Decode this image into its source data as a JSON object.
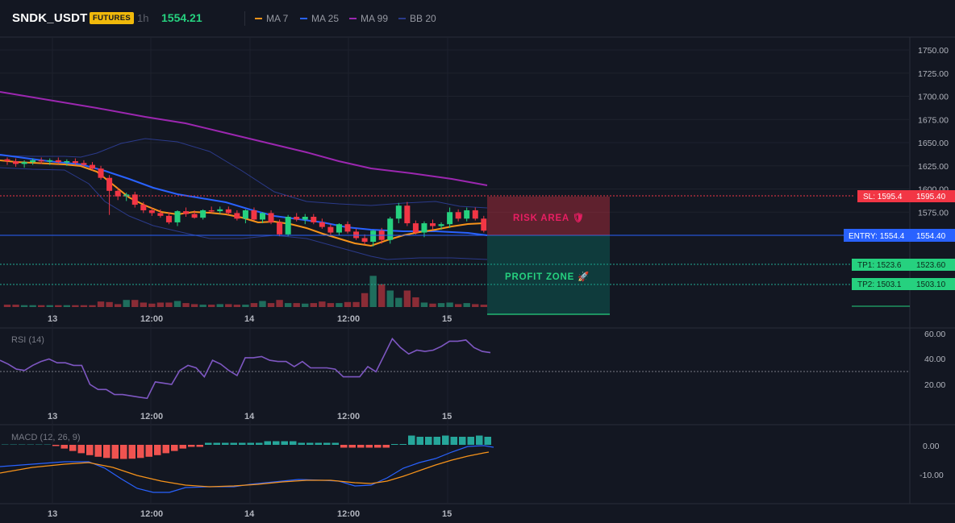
{
  "header": {
    "symbol": "SNDK_USDT",
    "badge": "FUTURES",
    "timeframe": "1h",
    "price": "1554.21"
  },
  "legend": [
    {
      "label": "MA 7",
      "color": "#f7931a"
    },
    {
      "label": "MA 25",
      "color": "#2962ff"
    },
    {
      "label": "MA 99",
      "color": "#9c27b0"
    },
    {
      "label": "BB 20",
      "color": "#2b3a8a"
    }
  ],
  "price_axis": [
    "1750.00",
    "1725.00",
    "1700.00",
    "1675.00",
    "1650.00",
    "1625.00",
    "1600.00",
    "1575.00",
    "1550.00"
  ],
  "time_axis": [
    "13",
    "12:00",
    "14",
    "12:00",
    "15"
  ],
  "levels": {
    "sl": {
      "tag": "SL: 1595.4",
      "value": "1595.40",
      "price": 1595.4
    },
    "entry": {
      "tag": "ENTRY: 1554.4",
      "value": "1554.40",
      "price": 1554.4
    },
    "tp1": {
      "tag": "TP1: 1523.6",
      "value": "1523.60",
      "price": 1523.6
    },
    "tp2": {
      "tag": "TP2: 1503.1",
      "value": "1503.10",
      "price": 1503.1
    }
  },
  "zones": {
    "risk_label": "RISK AREA 🛡",
    "profit_label": "PROFIT ZONE 🚀"
  },
  "rsi": {
    "title": "RSI (14)",
    "axis": [
      "60.00",
      "40.00",
      "20.00"
    ],
    "values": [
      39,
      36,
      32,
      31,
      35,
      38,
      40,
      37,
      37,
      35,
      35,
      20,
      16,
      16,
      12,
      12,
      11,
      10,
      9,
      22,
      21,
      20,
      31,
      35,
      33,
      26,
      39,
      36,
      31,
      27,
      41,
      41,
      42,
      39,
      38,
      38,
      34,
      38,
      33,
      33,
      33,
      32,
      26,
      26,
      26,
      34,
      30,
      43,
      56,
      49,
      44,
      47,
      46,
      47,
      50,
      54,
      54,
      55,
      49,
      46,
      45
    ]
  },
  "macd": {
    "title": "MACD (12, 26, 9)",
    "axis": [
      "0.00",
      "-10.00"
    ]
  },
  "chart_data": {
    "type": "candlestick",
    "y_range": [
      1540,
      1755
    ],
    "candles": [
      [
        1632,
        1634,
        1626,
        1630
      ],
      [
        1630,
        1633,
        1624,
        1627
      ],
      [
        1627,
        1631,
        1623,
        1629
      ],
      [
        1629,
        1633,
        1626,
        1631
      ],
      [
        1631,
        1634,
        1627,
        1630
      ],
      [
        1630,
        1633,
        1626,
        1631
      ],
      [
        1631,
        1634,
        1627,
        1629
      ],
      [
        1629,
        1632,
        1625,
        1630
      ],
      [
        1630,
        1633,
        1626,
        1628
      ],
      [
        1628,
        1631,
        1624,
        1626
      ],
      [
        1626,
        1629,
        1620,
        1622
      ],
      [
        1622,
        1625,
        1610,
        1612
      ],
      [
        1612,
        1615,
        1572,
        1598
      ],
      [
        1598,
        1601,
        1588,
        1592
      ],
      [
        1592,
        1596,
        1587,
        1594
      ],
      [
        1594,
        1597,
        1580,
        1583
      ],
      [
        1583,
        1586,
        1574,
        1577
      ],
      [
        1577,
        1580,
        1571,
        1574
      ],
      [
        1574,
        1578,
        1569,
        1571
      ],
      [
        1571,
        1575,
        1562,
        1564
      ],
      [
        1564,
        1577,
        1560,
        1576
      ],
      [
        1576,
        1580,
        1570,
        1573
      ],
      [
        1573,
        1577,
        1568,
        1569
      ],
      [
        1569,
        1578,
        1567,
        1577
      ],
      [
        1577,
        1581,
        1574,
        1576
      ],
      [
        1576,
        1581,
        1573,
        1578
      ],
      [
        1578,
        1581,
        1572,
        1574
      ],
      [
        1574,
        1577,
        1566,
        1568
      ],
      [
        1568,
        1578,
        1563,
        1577
      ],
      [
        1577,
        1580,
        1566,
        1567
      ],
      [
        1567,
        1575,
        1563,
        1574
      ],
      [
        1574,
        1577,
        1562,
        1564
      ],
      [
        1564,
        1567,
        1549,
        1551
      ],
      [
        1551,
        1572,
        1549,
        1570
      ],
      [
        1570,
        1574,
        1565,
        1567
      ],
      [
        1567,
        1573,
        1562,
        1570
      ],
      [
        1570,
        1573,
        1562,
        1564
      ],
      [
        1564,
        1568,
        1557,
        1559
      ],
      [
        1559,
        1562,
        1550,
        1553
      ],
      [
        1553,
        1563,
        1550,
        1562
      ],
      [
        1562,
        1565,
        1552,
        1554
      ],
      [
        1554,
        1557,
        1545,
        1547
      ],
      [
        1547,
        1551,
        1540,
        1543
      ],
      [
        1543,
        1556,
        1538,
        1555
      ],
      [
        1555,
        1558,
        1541,
        1545
      ],
      [
        1545,
        1570,
        1541,
        1568
      ],
      [
        1568,
        1585,
        1563,
        1582
      ],
      [
        1582,
        1586,
        1560,
        1563
      ],
      [
        1563,
        1566,
        1551,
        1553
      ],
      [
        1553,
        1565,
        1548,
        1563
      ],
      [
        1563,
        1567,
        1556,
        1560
      ],
      [
        1560,
        1564,
        1556,
        1562
      ],
      [
        1562,
        1580,
        1558,
        1575
      ],
      [
        1575,
        1578,
        1565,
        1568
      ],
      [
        1568,
        1580,
        1565,
        1577
      ],
      [
        1577,
        1580,
        1566,
        1568
      ],
      [
        1568,
        1571,
        1553,
        1555
      ]
    ],
    "volumes": [
      3,
      3,
      2,
      2,
      2,
      2,
      2,
      2,
      2,
      2,
      2,
      9,
      8,
      4,
      12,
      12,
      7,
      5,
      7,
      7,
      10,
      6,
      4,
      3,
      3,
      4,
      4,
      3,
      3,
      6,
      10,
      6,
      12,
      6,
      6,
      5,
      6,
      9,
      6,
      6,
      8,
      8,
      25,
      58,
      42,
      30,
      16,
      30,
      17,
      7,
      5,
      6,
      7,
      4,
      6,
      4,
      3
    ]
  }
}
